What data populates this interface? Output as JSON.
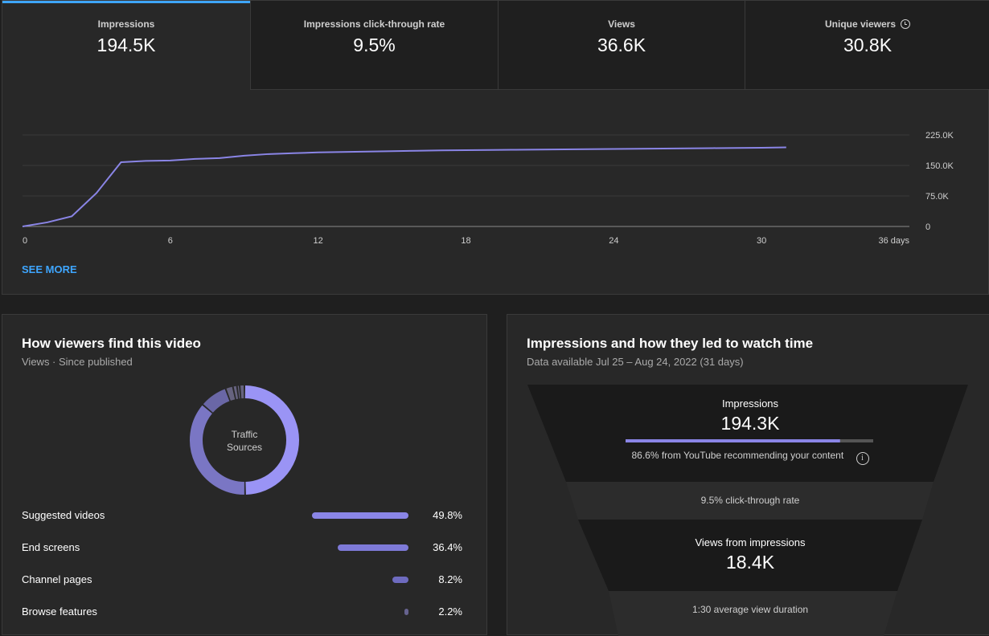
{
  "metrics": [
    {
      "label": "Impressions",
      "value": "194.5K"
    },
    {
      "label": "Impressions click-through rate",
      "value": "9.5%"
    },
    {
      "label": "Views",
      "value": "36.6K"
    },
    {
      "label": "Unique viewers",
      "value": "30.8K",
      "icon": "clock-icon"
    }
  ],
  "see_more": "SEE MORE",
  "chart_data": {
    "type": "line",
    "title": "",
    "xlabel": "",
    "ylabel": "",
    "x_ticks": [
      "0",
      "6",
      "12",
      "18",
      "24",
      "30",
      "36 days"
    ],
    "y_ticks": [
      "0",
      "75.0K",
      "150.0K",
      "225.0K"
    ],
    "xlim": [
      0,
      36
    ],
    "ylim": [
      0,
      225000
    ],
    "grid": true,
    "color": "#8a85e6",
    "series": [
      {
        "x": [
          0,
          1,
          2,
          3,
          4,
          5,
          6,
          7,
          8,
          9,
          10,
          11,
          12,
          13,
          14,
          15,
          16,
          17,
          18,
          19,
          20,
          21,
          22,
          23,
          24,
          25,
          26,
          27,
          28,
          29,
          30,
          31
        ],
        "values": [
          0,
          10000,
          25000,
          82000,
          158000,
          161000,
          162000,
          166000,
          168000,
          174000,
          178000,
          180000,
          182000,
          183000,
          184000,
          185000,
          186000,
          187000,
          187500,
          188000,
          188500,
          189000,
          189500,
          190000,
          190500,
          191000,
          191500,
          192000,
          192500,
          193000,
          193500,
          194500
        ]
      }
    ]
  },
  "traffic": {
    "title": "How viewers find this video",
    "subtitle": "Views · Since published",
    "donut_label_1": "Traffic",
    "donut_label_2": "Sources",
    "sources": [
      {
        "name": "Suggested videos",
        "pct": "49.8%",
        "value": 49.8
      },
      {
        "name": "End screens",
        "pct": "36.4%",
        "value": 36.4
      },
      {
        "name": "Channel pages",
        "pct": "8.2%",
        "value": 8.2
      },
      {
        "name": "Browse features",
        "pct": "2.2%",
        "value": 2.2
      }
    ]
  },
  "funnel": {
    "title": "Impressions and how they led to watch time",
    "subtitle": "Data available Jul 25 – Aug 24, 2022 (31 days)",
    "impressions_label": "Impressions",
    "impressions_value": "194.3K",
    "impressions_bar_fraction": 0.866,
    "recommend_text": "86.6% from YouTube recommending your content",
    "ctr_text": "9.5% click-through rate",
    "views_label": "Views from impressions",
    "views_value": "18.4K",
    "avd_text": "1:30 average view duration"
  }
}
